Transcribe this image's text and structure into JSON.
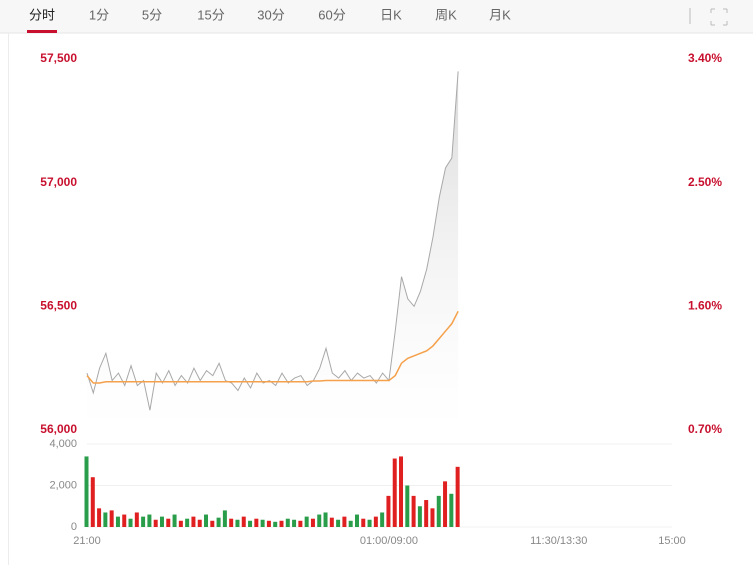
{
  "tabs": [
    "分时",
    "1分",
    "5分",
    "15分",
    "30分",
    "60分",
    "日K",
    "周K",
    "月K"
  ],
  "active_tab": 0,
  "chart_data": {
    "type": "line",
    "x": [
      0,
      5,
      10,
      15,
      20,
      25,
      30,
      35,
      40,
      45,
      50,
      55,
      60,
      65,
      70,
      75,
      80,
      85,
      90,
      95,
      100,
      105,
      110,
      115,
      120,
      125,
      130,
      135,
      140,
      145,
      150,
      155,
      160,
      165,
      170,
      175,
      180,
      185,
      190,
      195,
      200,
      205,
      210,
      215,
      220,
      225,
      230,
      235,
      240,
      245,
      250,
      255,
      260,
      265,
      270,
      275,
      280,
      285,
      290,
      295
    ],
    "xlim": [
      0,
      465
    ],
    "xticks": [
      {
        "value": 0,
        "label": "21:00"
      },
      {
        "value": 240,
        "label": "01:00/09:00"
      },
      {
        "value": 375,
        "label": "11:30/13:30"
      },
      {
        "value": 465,
        "label": "15:00"
      }
    ],
    "ylim": [
      56000,
      57500
    ],
    "yticks": [
      {
        "value": 56000,
        "label": "56,000"
      },
      {
        "value": 56500,
        "label": "56,500"
      },
      {
        "value": 57000,
        "label": "57,000"
      },
      {
        "value": 57500,
        "label": "57,500"
      }
    ],
    "y2lim": [
      0.7,
      3.4
    ],
    "y2ticks": [
      {
        "value": 0.7,
        "label": "0.70%"
      },
      {
        "value": 1.6,
        "label": "1.60%"
      },
      {
        "value": 2.5,
        "label": "2.50%"
      },
      {
        "value": 3.4,
        "label": "3.40%"
      }
    ],
    "series": [
      {
        "color": "#a8a8a8",
        "values": [
          56230,
          56150,
          56250,
          56310,
          56200,
          56230,
          56180,
          56260,
          56180,
          56200,
          56080,
          56230,
          56190,
          56240,
          56180,
          56220,
          56190,
          56250,
          56200,
          56240,
          56220,
          56270,
          56200,
          56190,
          56160,
          56210,
          56170,
          56230,
          56190,
          56200,
          56180,
          56230,
          56190,
          56210,
          56220,
          56180,
          56200,
          56250,
          56330,
          56230,
          56210,
          56240,
          56200,
          56230,
          56210,
          56220,
          56190,
          56230,
          56200,
          56400,
          56620,
          56530,
          56500,
          56560,
          56650,
          56780,
          56940,
          57060,
          57100,
          57450
        ]
      },
      {
        "color": "#f5a04a",
        "axis": "y",
        "values": [
          56220,
          56190,
          56190,
          56195,
          56195,
          56195,
          56195,
          56195,
          56195,
          56195,
          56195,
          56195,
          56195,
          56195,
          56195,
          56195,
          56195,
          56195,
          56195,
          56195,
          56195,
          56195,
          56195,
          56195,
          56195,
          56195,
          56195,
          56195,
          56195,
          56195,
          56195,
          56195,
          56195,
          56195,
          56195,
          56195,
          56198,
          56198,
          56200,
          56200,
          56200,
          56200,
          56200,
          56200,
          56200,
          56200,
          56200,
          56200,
          56200,
          56220,
          56270,
          56290,
          56300,
          56310,
          56320,
          56340,
          56370,
          56400,
          56430,
          56480
        ]
      }
    ],
    "volume": {
      "ylim": [
        0,
        4000
      ],
      "yticks": [
        0,
        {
          "value": 2000,
          "label": "2,000"
        },
        {
          "value": 4000,
          "label": "4,000"
        }
      ],
      "values": [
        3400,
        2400,
        900,
        700,
        800,
        500,
        600,
        400,
        700,
        500,
        600,
        350,
        500,
        400,
        600,
        300,
        400,
        500,
        350,
        600,
        300,
        450,
        800,
        400,
        350,
        500,
        300,
        400,
        350,
        300,
        250,
        300,
        400,
        350,
        300,
        500,
        400,
        600,
        700,
        450,
        350,
        500,
        300,
        600,
        400,
        350,
        500,
        700,
        1500,
        3300,
        3400,
        2000,
        1500,
        1000,
        1300,
        900,
        1500,
        2200,
        1600,
        2900
      ],
      "colors": [
        "#2a9d4a",
        "#e02020",
        "#e02020",
        "#2a9d4a",
        "#e02020",
        "#2a9d4a",
        "#e02020",
        "#2a9d4a",
        "#e02020",
        "#2a9d4a",
        "#2a9d4a",
        "#e02020",
        "#2a9d4a",
        "#e02020",
        "#2a9d4a",
        "#e02020",
        "#2a9d4a",
        "#e02020",
        "#e02020",
        "#2a9d4a",
        "#e02020",
        "#2a9d4a",
        "#2a9d4a",
        "#e02020",
        "#2a9d4a",
        "#e02020",
        "#2a9d4a",
        "#e02020",
        "#2a9d4a",
        "#e02020",
        "#2a9d4a",
        "#e02020",
        "#2a9d4a",
        "#2a9d4a",
        "#e02020",
        "#2a9d4a",
        "#e02020",
        "#2a9d4a",
        "#2a9d4a",
        "#e02020",
        "#2a9d4a",
        "#e02020",
        "#2a9d4a",
        "#2a9d4a",
        "#e02020",
        "#2a9d4a",
        "#e02020",
        "#2a9d4a",
        "#e02020",
        "#e02020",
        "#e02020",
        "#2a9d4a",
        "#e02020",
        "#2a9d4a",
        "#e02020",
        "#e02020",
        "#2a9d4a",
        "#e02020",
        "#2a9d4a",
        "#e02020"
      ]
    }
  }
}
